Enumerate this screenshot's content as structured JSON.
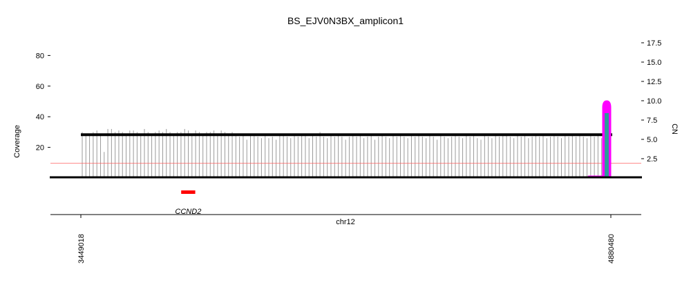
{
  "chart_data": {
    "type": "bar",
    "title": "BS_EJV0N3BX_amplicon1",
    "ylabel_left": "Coverage",
    "ylabel_right": "CN",
    "xlabel": "chr12",
    "coverage_yticks": [
      20,
      40,
      60,
      80
    ],
    "cn_yticks": [
      "2.5",
      "5.0",
      "7.5",
      "10.0",
      "12.5",
      "15.0",
      "17.5"
    ],
    "x_ticks": [
      "3449018",
      "4880480"
    ],
    "x_range": [
      3449018,
      4880480
    ],
    "coverage_ylim": [
      0,
      90
    ],
    "cn_ylim": [
      0,
      18
    ],
    "cn_segment": {
      "start": 3449018,
      "end": 4880480,
      "cn": 5.6
    },
    "cn_threshold": 1.9,
    "amplified_interval": {
      "start": 4856000,
      "end": 4880480,
      "peak_cn": 10.0
    },
    "coverage_values": [
      30,
      29,
      29,
      30,
      31,
      29,
      17,
      32,
      32,
      30,
      31,
      30,
      29,
      31,
      31,
      30,
      29,
      32,
      30,
      29,
      30,
      31,
      30,
      32,
      30,
      29,
      30,
      30,
      32,
      31,
      29,
      31,
      30,
      28,
      30,
      30,
      31,
      29,
      31,
      30,
      29,
      30,
      28,
      27,
      28,
      25,
      28,
      29,
      27,
      26,
      28,
      26,
      27,
      25,
      28,
      28,
      27,
      26,
      28,
      27,
      29,
      28,
      26,
      28,
      27,
      30,
      27,
      26,
      28,
      27,
      28,
      27,
      25,
      27,
      28,
      27,
      29,
      26,
      27,
      28,
      25,
      27,
      28,
      27,
      26,
      28,
      27,
      28,
      27,
      26,
      28,
      27,
      29,
      27,
      26,
      28,
      27,
      25,
      28,
      27,
      26,
      27,
      28,
      27,
      26,
      28,
      27,
      28,
      26,
      25,
      28,
      27,
      26,
      28,
      27,
      28,
      28,
      27,
      26,
      28,
      27,
      28,
      26,
      27,
      28,
      27,
      28,
      26,
      27,
      28,
      27,
      26,
      28,
      27,
      28,
      27,
      28,
      27,
      26,
      28,
      27,
      28,
      26,
      28
    ],
    "genes": [
      {
        "name": "CCND2",
        "start": 3720000,
        "end": 3758000,
        "color": "#ff0000"
      }
    ],
    "colors": {
      "coverage": "#999999",
      "cn_segment": "#000000",
      "threshold": "#ff5c5c",
      "amplicon": "#ff00ff",
      "amplicon_core": "#2d9a9a",
      "gene": "#ff0000"
    }
  }
}
